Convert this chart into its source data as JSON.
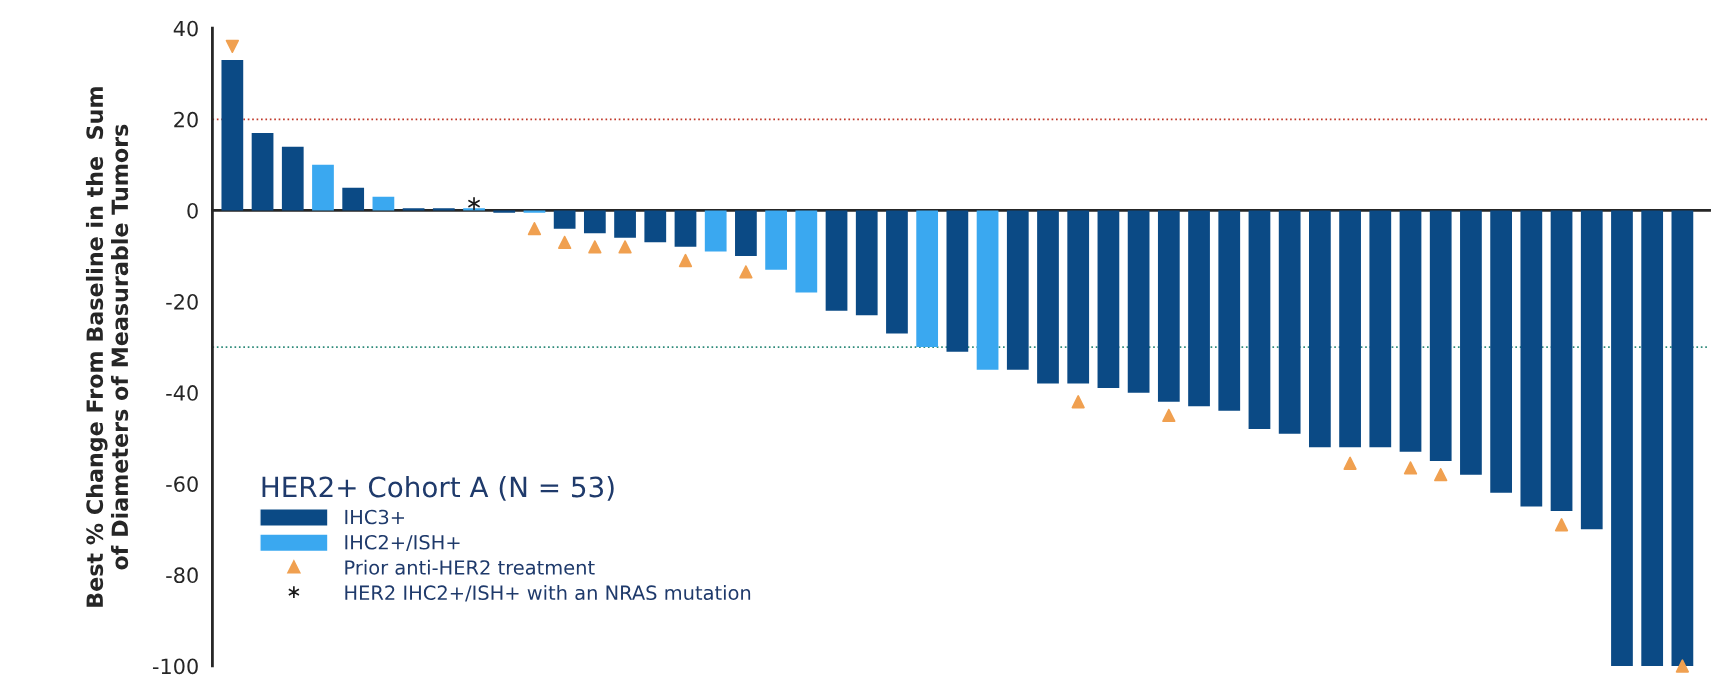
{
  "chart_data": {
    "type": "bar",
    "ylabel": "Best % Change From Baseline in the  Sum\nof Diameters of Measurable Tumors",
    "legend_title": "HER2+ Cohort A (N = 53)",
    "categories": [
      null,
      null,
      null,
      null,
      null,
      null,
      null,
      null,
      null,
      null,
      null,
      null,
      null,
      null,
      null,
      null,
      null,
      null,
      null,
      null,
      null,
      null,
      null,
      null,
      null,
      null,
      null,
      null,
      null,
      null,
      null,
      null,
      null,
      null,
      null,
      null,
      null,
      null,
      null,
      null,
      null,
      null,
      null,
      null,
      null,
      null,
      null,
      null,
      null
    ],
    "series": [
      {
        "name": "IHC3+",
        "color": "#0b4a85",
        "values": [
          33,
          17,
          14,
          null,
          5,
          null,
          0.5,
          0.5,
          null,
          -0.5,
          null,
          -4,
          -5,
          -6,
          -7,
          -8,
          null,
          -10,
          null,
          null,
          -22,
          -23,
          -27,
          null,
          -31,
          null,
          -35,
          -38,
          -38,
          -39,
          -40,
          -42,
          -43,
          -44,
          -48,
          -49,
          -52,
          -52,
          -52,
          -53,
          -55,
          -58,
          -62,
          -65,
          -66,
          -70,
          -100,
          -100,
          -100
        ]
      },
      {
        "name": "IHC2+/ISH+",
        "color": "#3aa8f0",
        "values": [
          null,
          null,
          null,
          10,
          null,
          3,
          null,
          null,
          0.5,
          null,
          -0.5,
          null,
          null,
          null,
          null,
          null,
          -9,
          null,
          -13,
          -18,
          null,
          null,
          null,
          -30,
          null,
          -35,
          null,
          null,
          null,
          null,
          null,
          null,
          null,
          null,
          null,
          null,
          null,
          null,
          null,
          null,
          null,
          null,
          null,
          null,
          null,
          null,
          null,
          null,
          null
        ]
      },
      {
        "name": "Prior anti-HER2 treatment",
        "type": "scatter",
        "marker": "triangle",
        "color": "#f0a050",
        "values": [
          36,
          null,
          null,
          null,
          null,
          null,
          null,
          null,
          null,
          null,
          -4,
          -7,
          -8,
          -8,
          null,
          -11,
          null,
          -13.5,
          null,
          null,
          null,
          null,
          null,
          null,
          null,
          null,
          null,
          null,
          -42,
          null,
          null,
          -45,
          null,
          null,
          null,
          null,
          null,
          -55.5,
          null,
          -56.5,
          -58,
          null,
          null,
          null,
          -69,
          null,
          null,
          null,
          -100
        ]
      },
      {
        "name": "HER2 IHC2+/ISH+ with an NRAS mutation",
        "type": "scatter",
        "marker": "cross",
        "color": "#1a1a1a",
        "values": [
          null,
          null,
          null,
          null,
          null,
          null,
          null,
          null,
          1.5,
          null,
          null,
          null,
          null,
          null,
          null,
          null,
          null,
          null,
          null,
          null,
          null,
          null,
          null,
          null,
          null,
          null,
          null,
          null,
          null,
          null,
          null,
          null,
          null,
          null,
          null,
          null,
          null,
          null,
          null,
          null,
          null,
          null,
          null,
          null,
          null,
          null,
          null,
          null,
          null
        ]
      }
    ],
    "ylim": [
      -100,
      40
    ],
    "yticks": [
      -100,
      -80,
      -60,
      -40,
      -20,
      0,
      20,
      40
    ],
    "ref_lines": [
      {
        "axis": "y",
        "value": 20,
        "color": "#c0392b",
        "line_style": "dotted"
      },
      {
        "axis": "y",
        "value": -30,
        "color": "#2e8b7a",
        "line_style": "dotted"
      }
    ],
    "tick_labels": "y",
    "grid": false,
    "legend": "bottom left"
  }
}
